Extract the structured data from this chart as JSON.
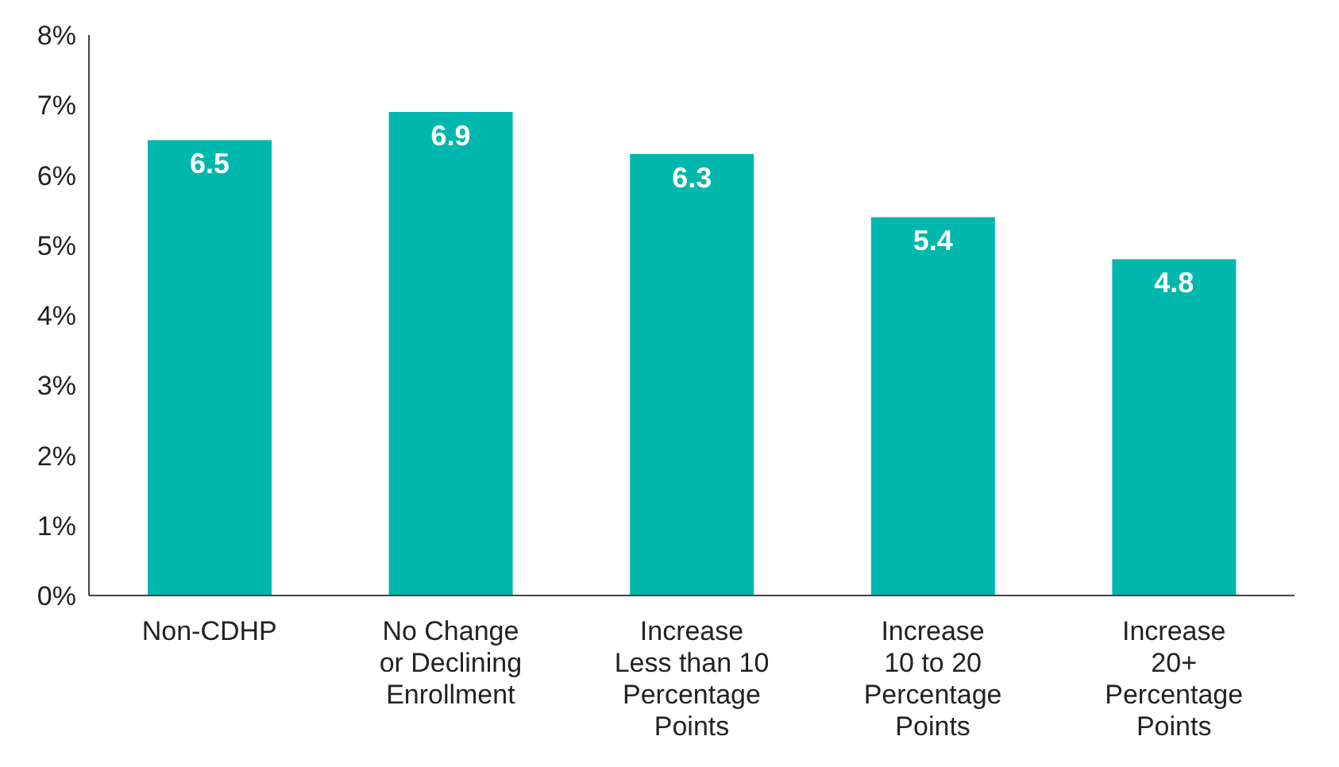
{
  "chart_data": {
    "type": "bar",
    "categories": [
      "Non-CDHP",
      "No Change\nor Declining\nEnrollment",
      "Increase\nLess than 10\nPercentage\nPoints",
      "Increase\n10 to 20\nPercentage\nPoints",
      "Increase\n20+\nPercentage\nPoints"
    ],
    "values": [
      6.5,
      6.9,
      6.3,
      5.4,
      4.8
    ],
    "color": "#00b7ae",
    "ylim": [
      0,
      8
    ],
    "yticks": [
      {
        "value": 0,
        "label": "0%"
      },
      {
        "value": 1,
        "label": "1%"
      },
      {
        "value": 2,
        "label": "2%"
      },
      {
        "value": 3,
        "label": "3%"
      },
      {
        "value": 4,
        "label": "4%"
      },
      {
        "value": 5,
        "label": "5%"
      },
      {
        "value": 6,
        "label": "6%"
      },
      {
        "value": 7,
        "label": "7%"
      },
      {
        "value": 8,
        "label": "8%"
      }
    ],
    "data_labels": true
  }
}
